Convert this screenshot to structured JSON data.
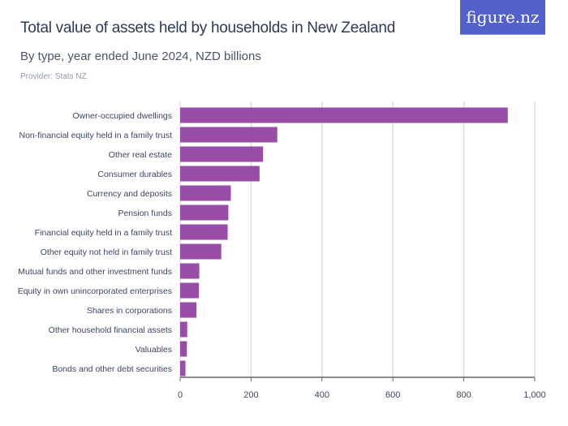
{
  "title": "Total value of assets held by households in New Zealand",
  "subtitle": "By type, year ended June 2024, NZD billions",
  "provider": "Provider: Stats NZ",
  "logo": "figure.nz",
  "colors": {
    "bar": "#994ca8",
    "logo_bg": "#5262c9"
  },
  "chart_data": {
    "type": "bar",
    "orientation": "horizontal",
    "categories": [
      "Owner-occupied dwellings",
      "Non-financial equity held in a family trust",
      "Other real estate",
      "Consumer durables",
      "Currency and deposits",
      "Pension funds",
      "Financial equity held in a family trust",
      "Other equity not held in family trust",
      "Mutual funds and other investment funds",
      "Equity in own unincorporated enterprises",
      "Shares in corporations",
      "Other household financial assets",
      "Valuables",
      "Bonds and other debt securities"
    ],
    "values": [
      924,
      274,
      234,
      224,
      143,
      136,
      134,
      116,
      54,
      53,
      46,
      20,
      19,
      15
    ],
    "xlim": [
      0,
      1000
    ],
    "xticks": [
      0,
      200,
      400,
      600,
      800,
      1000
    ],
    "xtick_labels": [
      "0",
      "200",
      "400",
      "600",
      "800",
      "1,000"
    ],
    "grid": true
  }
}
